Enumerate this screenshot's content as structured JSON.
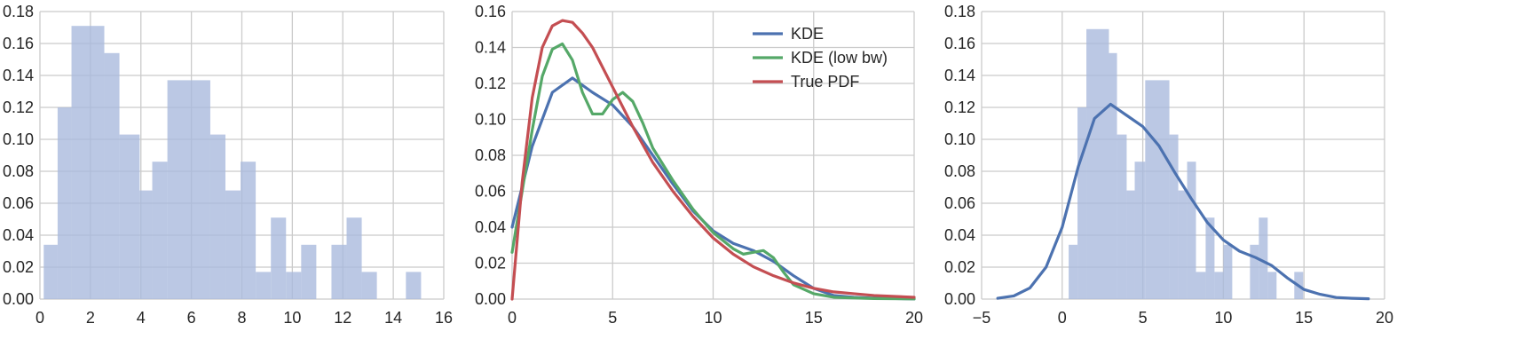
{
  "chart_data": [
    {
      "type": "bar",
      "subtype": "histogram",
      "title": "",
      "xlabel": "",
      "ylabel": "",
      "xlim": [
        0,
        16
      ],
      "ylim": [
        0,
        0.18
      ],
      "xticks": [
        "0",
        "2",
        "4",
        "6",
        "8",
        "10",
        "12",
        "14",
        "16"
      ],
      "yticks": [
        "0.00",
        "0.02",
        "0.04",
        "0.06",
        "0.08",
        "0.10",
        "0.12",
        "0.14",
        "0.16",
        "0.18"
      ],
      "grid": true,
      "bar_color": "#a8b9dc",
      "bins": [
        {
          "x0": 0.15,
          "x1": 0.7,
          "value": 0.034
        },
        {
          "x0": 0.7,
          "x1": 1.25,
          "value": 0.12
        },
        {
          "x0": 1.25,
          "x1": 2.55,
          "value": 0.171
        },
        {
          "x0": 2.55,
          "x1": 3.15,
          "value": 0.154
        },
        {
          "x0": 3.15,
          "x1": 3.95,
          "value": 0.103
        },
        {
          "x0": 3.95,
          "x1": 4.45,
          "value": 0.068
        },
        {
          "x0": 4.45,
          "x1": 5.05,
          "value": 0.086
        },
        {
          "x0": 5.05,
          "x1": 6.75,
          "value": 0.137
        },
        {
          "x0": 6.75,
          "x1": 7.35,
          "value": 0.103
        },
        {
          "x0": 7.35,
          "x1": 7.95,
          "value": 0.068
        },
        {
          "x0": 7.95,
          "x1": 8.55,
          "value": 0.086
        },
        {
          "x0": 8.55,
          "x1": 9.15,
          "value": 0.017
        },
        {
          "x0": 9.15,
          "x1": 9.75,
          "value": 0.051
        },
        {
          "x0": 9.75,
          "x1": 10.35,
          "value": 0.017
        },
        {
          "x0": 10.35,
          "x1": 10.95,
          "value": 0.034
        },
        {
          "x0": 11.55,
          "x1": 12.15,
          "value": 0.034
        },
        {
          "x0": 12.15,
          "x1": 12.75,
          "value": 0.051
        },
        {
          "x0": 12.75,
          "x1": 13.35,
          "value": 0.017
        },
        {
          "x0": 14.5,
          "x1": 15.1,
          "value": 0.017
        }
      ]
    },
    {
      "type": "line",
      "title": "",
      "xlabel": "",
      "ylabel": "",
      "xlim": [
        0,
        20
      ],
      "ylim": [
        0,
        0.16
      ],
      "xticks": [
        "0",
        "5",
        "10",
        "15",
        "20"
      ],
      "yticks": [
        "0.00",
        "0.02",
        "0.04",
        "0.06",
        "0.08",
        "0.10",
        "0.12",
        "0.14",
        "0.16"
      ],
      "grid": true,
      "legend_position": "top-right",
      "series": [
        {
          "name": "KDE",
          "color": "#4c72b0",
          "x": [
            0,
            1,
            2,
            3,
            4,
            5,
            6,
            7,
            8,
            9,
            10,
            11,
            12,
            13,
            14,
            15,
            16,
            17,
            18,
            20
          ],
          "y": [
            0.04,
            0.085,
            0.115,
            0.123,
            0.115,
            0.108,
            0.096,
            0.08,
            0.064,
            0.049,
            0.038,
            0.031,
            0.027,
            0.021,
            0.013,
            0.006,
            0.002,
            0.001,
            0.0005,
            0.0001
          ]
        },
        {
          "name": "KDE (low bw)",
          "color": "#55a868",
          "x": [
            0,
            0.5,
            1,
            1.5,
            2,
            2.5,
            3,
            3.5,
            4,
            4.5,
            5,
            5.5,
            6,
            6.5,
            7,
            8,
            9,
            10,
            11,
            11.5,
            12,
            12.5,
            13,
            13.5,
            14,
            15,
            16,
            18,
            20
          ],
          "y": [
            0.026,
            0.06,
            0.094,
            0.124,
            0.139,
            0.142,
            0.133,
            0.115,
            0.103,
            0.103,
            0.111,
            0.115,
            0.11,
            0.098,
            0.084,
            0.066,
            0.05,
            0.037,
            0.028,
            0.025,
            0.026,
            0.027,
            0.023,
            0.015,
            0.008,
            0.003,
            0.001,
            0.0003,
            0.0001
          ]
        },
        {
          "name": "True PDF",
          "color": "#c44e52",
          "x": [
            0,
            0.5,
            1,
            1.5,
            2,
            2.5,
            3,
            3.5,
            4,
            5,
            6,
            7,
            8,
            9,
            10,
            11,
            12,
            13,
            14,
            15,
            16,
            17,
            18,
            20
          ],
          "y": [
            0.0,
            0.065,
            0.112,
            0.14,
            0.152,
            0.155,
            0.154,
            0.148,
            0.14,
            0.118,
            0.096,
            0.076,
            0.06,
            0.046,
            0.034,
            0.025,
            0.018,
            0.013,
            0.009,
            0.006,
            0.004,
            0.003,
            0.002,
            0.001
          ]
        }
      ]
    },
    {
      "type": "bar",
      "subtype": "histogram-with-kde",
      "title": "",
      "xlabel": "",
      "ylabel": "",
      "xlim": [
        -5,
        20
      ],
      "ylim": [
        0,
        0.18
      ],
      "xticks": [
        "−5",
        "0",
        "5",
        "10",
        "15",
        "20"
      ],
      "yticks": [
        "0.00",
        "0.02",
        "0.04",
        "0.06",
        "0.08",
        "0.10",
        "0.12",
        "0.14",
        "0.16",
        "0.18"
      ],
      "grid": true,
      "bar_color": "#a8b9dc",
      "bins": [
        {
          "x0": 0.4,
          "x1": 0.95,
          "value": 0.034
        },
        {
          "x0": 0.95,
          "x1": 1.5,
          "value": 0.12
        },
        {
          "x0": 1.5,
          "x1": 2.9,
          "value": 0.169
        },
        {
          "x0": 2.9,
          "x1": 3.4,
          "value": 0.154
        },
        {
          "x0": 3.4,
          "x1": 4.0,
          "value": 0.103
        },
        {
          "x0": 4.0,
          "x1": 4.5,
          "value": 0.068
        },
        {
          "x0": 4.5,
          "x1": 5.15,
          "value": 0.086
        },
        {
          "x0": 5.15,
          "x1": 6.65,
          "value": 0.137
        },
        {
          "x0": 6.65,
          "x1": 7.2,
          "value": 0.103
        },
        {
          "x0": 7.2,
          "x1": 7.75,
          "value": 0.068
        },
        {
          "x0": 7.75,
          "x1": 8.3,
          "value": 0.086
        },
        {
          "x0": 8.3,
          "x1": 8.9,
          "value": 0.017
        },
        {
          "x0": 8.9,
          "x1": 9.45,
          "value": 0.051
        },
        {
          "x0": 9.45,
          "x1": 10.0,
          "value": 0.017
        },
        {
          "x0": 10.0,
          "x1": 10.55,
          "value": 0.034
        },
        {
          "x0": 11.65,
          "x1": 12.2,
          "value": 0.034
        },
        {
          "x0": 12.2,
          "x1": 12.75,
          "value": 0.051
        },
        {
          "x0": 12.75,
          "x1": 13.3,
          "value": 0.017
        },
        {
          "x0": 14.4,
          "x1": 14.95,
          "value": 0.017
        }
      ],
      "kde": {
        "color": "#4c72b0",
        "x": [
          -4,
          -3,
          -2,
          -1,
          0,
          1,
          2,
          3,
          4,
          5,
          6,
          7,
          8,
          9,
          10,
          11,
          12,
          13,
          14,
          15,
          16,
          17,
          18,
          19
        ],
        "y": [
          0.0005,
          0.002,
          0.007,
          0.02,
          0.045,
          0.083,
          0.113,
          0.122,
          0.115,
          0.108,
          0.096,
          0.079,
          0.063,
          0.048,
          0.037,
          0.03,
          0.026,
          0.021,
          0.013,
          0.006,
          0.003,
          0.001,
          0.0005,
          0.0002
        ]
      }
    }
  ]
}
